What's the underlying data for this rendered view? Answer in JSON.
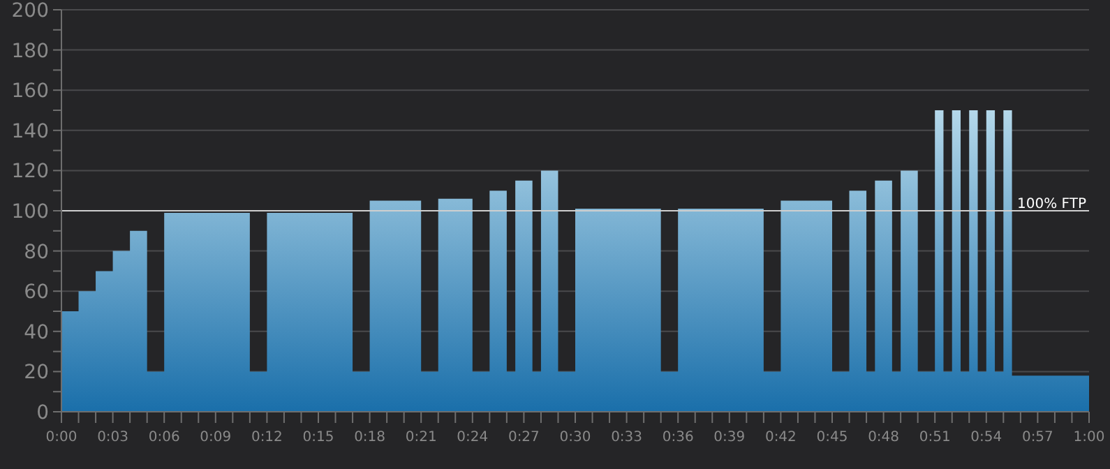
{
  "chart_data": {
    "type": "area",
    "x": [
      0,
      1,
      2,
      3,
      4,
      5,
      6,
      11,
      12,
      17,
      18,
      21,
      22,
      24,
      25,
      26,
      26.5,
      27.5,
      28,
      29,
      30,
      35,
      36,
      41,
      42,
      45,
      46,
      47,
      47.5,
      48.5,
      49,
      50,
      51,
      51.5,
      52,
      52.5,
      53,
      53.5,
      54,
      54.5,
      55,
      55.5,
      60
    ],
    "series": [
      {
        "color": "#1a6faa",
        "values": [
          50,
          60,
          70,
          80,
          90,
          20,
          99,
          20,
          99,
          20,
          105,
          20,
          106,
          20,
          110,
          20,
          115,
          20,
          120,
          20,
          101,
          20,
          101,
          20,
          105,
          20,
          110,
          20,
          115,
          20,
          120,
          20,
          150,
          20,
          150,
          20,
          150,
          20,
          150,
          20,
          150,
          18,
          18
        ]
      }
    ],
    "xlim": [
      0,
      60
    ],
    "xticks": [
      {
        "value": 0,
        "label": "0:00"
      },
      {
        "value": 1,
        "label": null
      },
      {
        "value": 2,
        "label": null
      },
      {
        "value": 3,
        "label": "0:03"
      },
      {
        "value": 4,
        "label": null
      },
      {
        "value": 5,
        "label": null
      },
      {
        "value": 6,
        "label": "0:06"
      },
      {
        "value": 7,
        "label": null
      },
      {
        "value": 8,
        "label": null
      },
      {
        "value": 9,
        "label": "0:09"
      },
      {
        "value": 10,
        "label": null
      },
      {
        "value": 11,
        "label": null
      },
      {
        "value": 12,
        "label": "0:12"
      },
      {
        "value": 13,
        "label": null
      },
      {
        "value": 14,
        "label": null
      },
      {
        "value": 15,
        "label": "0:15"
      },
      {
        "value": 16,
        "label": null
      },
      {
        "value": 17,
        "label": null
      },
      {
        "value": 18,
        "label": "0:18"
      },
      {
        "value": 19,
        "label": null
      },
      {
        "value": 20,
        "label": null
      },
      {
        "value": 21,
        "label": "0:21"
      },
      {
        "value": 22,
        "label": null
      },
      {
        "value": 23,
        "label": null
      },
      {
        "value": 24,
        "label": "0:24"
      },
      {
        "value": 25,
        "label": null
      },
      {
        "value": 26,
        "label": null
      },
      {
        "value": 27,
        "label": "0:27"
      },
      {
        "value": 28,
        "label": null
      },
      {
        "value": 29,
        "label": null
      },
      {
        "value": 30,
        "label": "0:30"
      },
      {
        "value": 31,
        "label": null
      },
      {
        "value": 32,
        "label": null
      },
      {
        "value": 33,
        "label": "0:33"
      },
      {
        "value": 34,
        "label": null
      },
      {
        "value": 35,
        "label": null
      },
      {
        "value": 36,
        "label": "0:36"
      },
      {
        "value": 37,
        "label": null
      },
      {
        "value": 38,
        "label": null
      },
      {
        "value": 39,
        "label": "0:39"
      },
      {
        "value": 40,
        "label": null
      },
      {
        "value": 41,
        "label": null
      },
      {
        "value": 42,
        "label": "0:42"
      },
      {
        "value": 43,
        "label": null
      },
      {
        "value": 44,
        "label": null
      },
      {
        "value": 45,
        "label": "0:45"
      },
      {
        "value": 46,
        "label": null
      },
      {
        "value": 47,
        "label": null
      },
      {
        "value": 48,
        "label": "0:48"
      },
      {
        "value": 49,
        "label": null
      },
      {
        "value": 50,
        "label": null
      },
      {
        "value": 51,
        "label": "0:51"
      },
      {
        "value": 52,
        "label": null
      },
      {
        "value": 53,
        "label": null
      },
      {
        "value": 54,
        "label": "0:54"
      },
      {
        "value": 55,
        "label": null
      },
      {
        "value": 56,
        "label": null
      },
      {
        "value": 57,
        "label": "0:57"
      },
      {
        "value": 58,
        "label": null
      },
      {
        "value": 59,
        "label": null
      },
      {
        "value": 60,
        "label": "1:00"
      }
    ],
    "ylim": [
      0,
      200
    ],
    "yticks": [
      0,
      {
        "value": 10,
        "label": null
      },
      20,
      {
        "value": 30,
        "label": null
      },
      40,
      {
        "value": 50,
        "label": null
      },
      60,
      {
        "value": 70,
        "label": null
      },
      80,
      {
        "value": 90,
        "label": null
      },
      100,
      {
        "value": 110,
        "label": null
      },
      120,
      {
        "value": 130,
        "label": null
      },
      140,
      {
        "value": 150,
        "label": null
      },
      160,
      {
        "value": 170,
        "label": null
      },
      180,
      {
        "value": 190,
        "label": null
      },
      200
    ],
    "grid": "y",
    "ref_lines": [
      {
        "axis": "y",
        "value": 100,
        "label": "100% FTP",
        "color": "#cfcfcf"
      }
    ]
  }
}
